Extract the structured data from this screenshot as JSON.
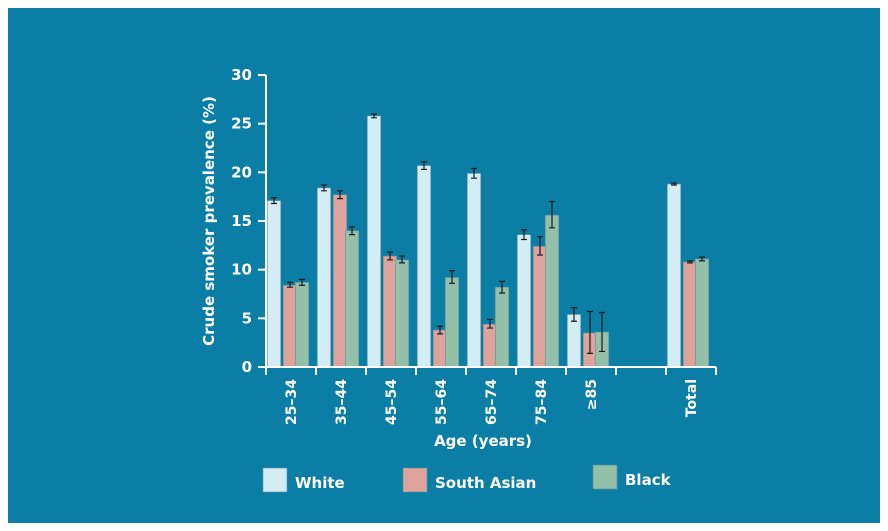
{
  "chart_data": {
    "type": "bar",
    "title": "",
    "xlabel": "Age (years)",
    "ylabel": "Crude smoker prevalence (%)",
    "ylim": [
      0,
      30
    ],
    "yticks": [
      0,
      5,
      10,
      15,
      20,
      25,
      30
    ],
    "categories": [
      "25–34",
      "35–44",
      "45–54",
      "55–64",
      "65–74",
      "75–84",
      "≥85",
      "",
      "Total"
    ],
    "series": [
      {
        "name": "White",
        "color": "#d4ecf4",
        "values": [
          17.1,
          18.4,
          25.8,
          20.7,
          19.9,
          13.6,
          5.4,
          null,
          18.8
        ],
        "err_low": [
          16.8,
          18.1,
          25.6,
          20.3,
          19.4,
          13.1,
          4.7,
          null,
          18.7
        ],
        "err_high": [
          17.4,
          18.7,
          26.0,
          21.1,
          20.4,
          14.1,
          6.1,
          null,
          18.9
        ]
      },
      {
        "name": "South Asian",
        "color": "#e0a39b",
        "values": [
          8.4,
          17.7,
          11.4,
          3.8,
          4.4,
          12.4,
          3.5,
          null,
          10.8
        ],
        "err_low": [
          8.2,
          17.3,
          11.0,
          3.4,
          4.0,
          11.5,
          1.4,
          null,
          10.7
        ],
        "err_high": [
          8.7,
          18.1,
          11.8,
          4.2,
          4.9,
          13.4,
          5.7,
          null,
          10.9
        ]
      },
      {
        "name": "Black",
        "color": "#94bfa8",
        "values": [
          8.7,
          14.0,
          11.0,
          9.2,
          8.2,
          15.6,
          3.6,
          null,
          11.1
        ],
        "err_low": [
          8.4,
          13.6,
          10.7,
          8.6,
          7.6,
          14.3,
          1.6,
          null,
          10.9
        ],
        "err_high": [
          9.0,
          14.4,
          11.4,
          9.9,
          8.8,
          17.0,
          5.6,
          null,
          11.3
        ]
      }
    ],
    "legend": {
      "position": "bottom"
    },
    "grid": false
  }
}
